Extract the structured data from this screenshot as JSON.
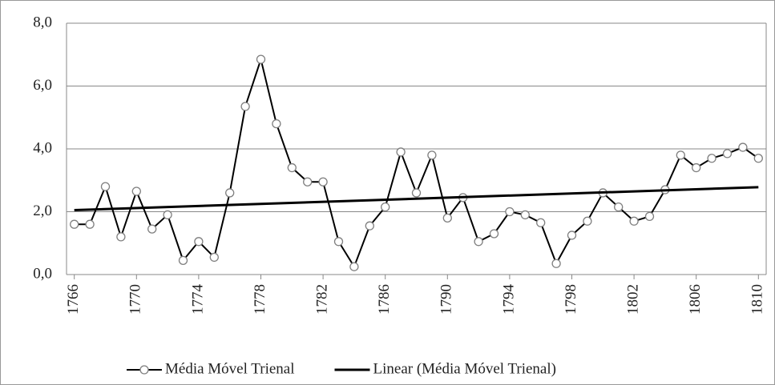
{
  "chart_data": {
    "type": "line",
    "x": [
      1766,
      1767,
      1768,
      1769,
      1770,
      1771,
      1772,
      1773,
      1774,
      1775,
      1776,
      1777,
      1778,
      1779,
      1780,
      1781,
      1782,
      1783,
      1784,
      1785,
      1786,
      1787,
      1788,
      1789,
      1790,
      1791,
      1792,
      1793,
      1794,
      1795,
      1796,
      1797,
      1798,
      1799,
      1800,
      1801,
      1802,
      1803,
      1804,
      1805,
      1806,
      1807,
      1808,
      1809,
      1810
    ],
    "series": [
      {
        "name": "Média Móvel Trienal",
        "color": "#000000",
        "marker_color": "#7f7f7f",
        "values": [
          1.6,
          1.6,
          2.8,
          1.2,
          2.65,
          1.45,
          1.9,
          0.45,
          1.05,
          0.55,
          2.6,
          5.35,
          6.85,
          4.8,
          3.4,
          2.95,
          2.95,
          1.05,
          0.25,
          1.55,
          2.15,
          3.9,
          2.6,
          3.8,
          1.8,
          2.45,
          1.05,
          1.3,
          2.0,
          1.9,
          1.65,
          0.35,
          1.25,
          1.7,
          2.6,
          2.15,
          1.7,
          1.85,
          2.7,
          3.8,
          3.4,
          3.7,
          3.85,
          4.05,
          3.7
        ]
      },
      {
        "name": "Linear (Média Móvel Trienal)",
        "color": "#000000",
        "x": [
          1766,
          1810
        ],
        "values": [
          2.05,
          2.78
        ]
      }
    ],
    "xlim": [
      1765.5,
      1810.5
    ],
    "xticks": [
      1766,
      1770,
      1774,
      1778,
      1782,
      1786,
      1790,
      1794,
      1798,
      1802,
      1806,
      1810
    ],
    "ylim": [
      0,
      8
    ],
    "yticks": [
      {
        "value": 0,
        "label": "0,0"
      },
      {
        "value": 2,
        "label": "2,0"
      },
      {
        "value": 4,
        "label": "4,0"
      },
      {
        "value": 6,
        "label": "6,0"
      },
      {
        "value": 8,
        "label": "8,0"
      }
    ],
    "grid": true,
    "legend": "bottom"
  }
}
